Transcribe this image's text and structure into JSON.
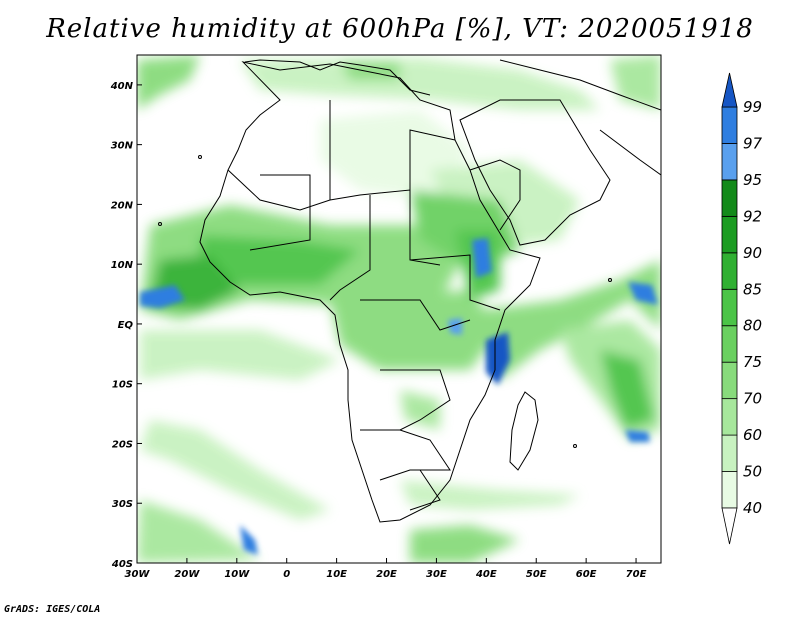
{
  "title": "Relative humidity at 600hPa [%], VT: 2020051918",
  "credit": "GrADS: IGES/COLA",
  "map": {
    "lon_range": [
      -30,
      75
    ],
    "lat_range": [
      -40,
      45
    ],
    "x_ticks": [
      {
        "value": -30,
        "label": "30W"
      },
      {
        "value": -20,
        "label": "20W"
      },
      {
        "value": -10,
        "label": "10W"
      },
      {
        "value": 0,
        "label": "0"
      },
      {
        "value": 10,
        "label": "10E"
      },
      {
        "value": 20,
        "label": "20E"
      },
      {
        "value": 30,
        "label": "30E"
      },
      {
        "value": 40,
        "label": "40E"
      },
      {
        "value": 50,
        "label": "50E"
      },
      {
        "value": 60,
        "label": "60E"
      },
      {
        "value": 70,
        "label": "70E"
      }
    ],
    "y_ticks": [
      {
        "value": 40,
        "label": "40N"
      },
      {
        "value": 30,
        "label": "30N"
      },
      {
        "value": 20,
        "label": "20N"
      },
      {
        "value": 10,
        "label": "10N"
      },
      {
        "value": 0,
        "label": "EQ"
      },
      {
        "value": -10,
        "label": "10S"
      },
      {
        "value": -20,
        "label": "20S"
      },
      {
        "value": -30,
        "label": "30S"
      },
      {
        "value": -40,
        "label": "40S"
      }
    ]
  },
  "colorbar": {
    "levels": [
      "40",
      "50",
      "60",
      "70",
      "75",
      "80",
      "85",
      "90",
      "92",
      "95",
      "97",
      "99"
    ],
    "colors": [
      "#e8fbe4",
      "#c8f2c0",
      "#a7e79c",
      "#88db7c",
      "#6ad060",
      "#4bc447",
      "#30b032",
      "#1c9c22",
      "#138a1a",
      "#5aa0ee",
      "#2f7ee0",
      "#1656c4"
    ]
  }
}
